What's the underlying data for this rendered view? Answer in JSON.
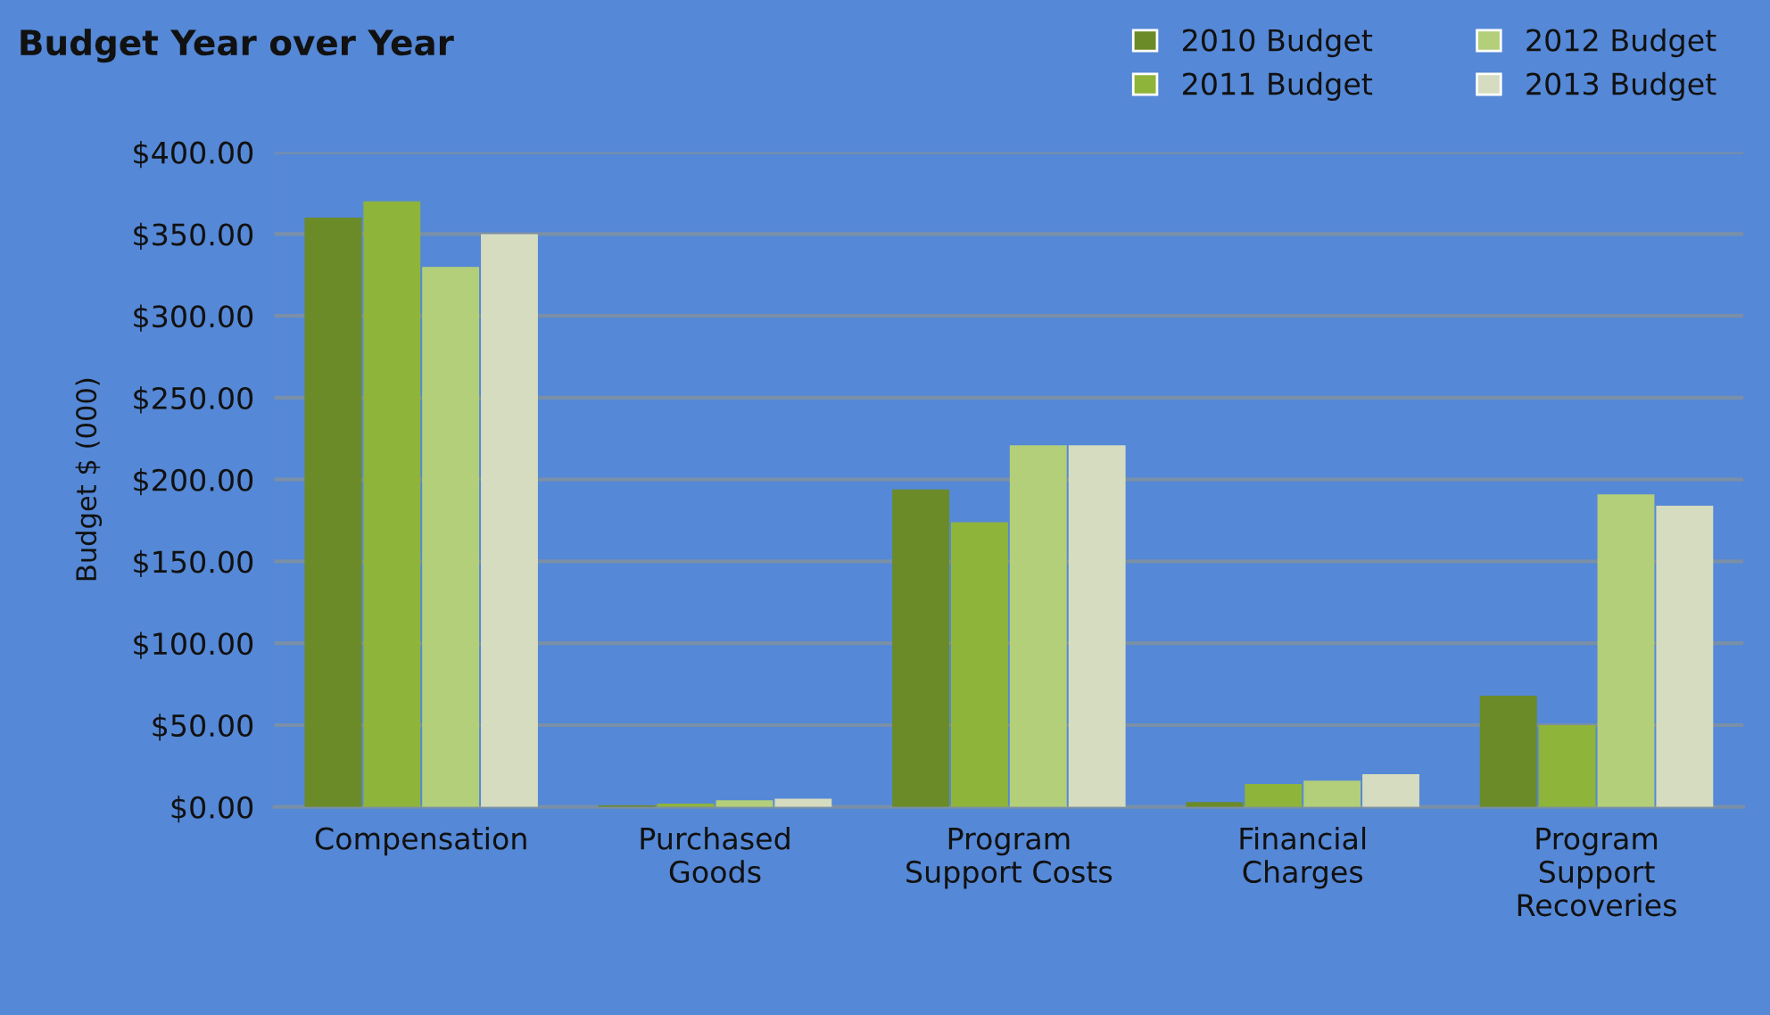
{
  "chart_data": {
    "type": "bar",
    "title": "Budget Year over Year",
    "ylabel": "Budget $ (000)",
    "categories": [
      "Compensation",
      "Purchased\nGoods",
      "Program\nSupport Costs",
      "Financial\nCharges",
      "Program\nSupport\nRecoveries"
    ],
    "series": [
      {
        "name": "2010 Budget",
        "color": "#6b8a28",
        "values": [
          360,
          1,
          194,
          3,
          68
        ]
      },
      {
        "name": "2011 Budget",
        "color": "#8fb43a",
        "values": [
          370,
          2,
          174,
          14,
          50
        ]
      },
      {
        "name": "2012 Budget",
        "color": "#b3cf7a",
        "values": [
          330,
          4,
          221,
          16,
          191
        ]
      },
      {
        "name": "2013 Budget",
        "color": "#d5dcbf",
        "values": [
          350,
          5,
          221,
          20,
          184
        ]
      }
    ],
    "ylim": [
      0,
      400
    ],
    "yticks": [
      {
        "value": 0,
        "label": "$0.00"
      },
      {
        "value": 50,
        "label": "$50.00"
      },
      {
        "value": 100,
        "label": "$100.00"
      },
      {
        "value": 150,
        "label": "$150.00"
      },
      {
        "value": 200,
        "label": "$200.00"
      },
      {
        "value": 250,
        "label": "$250.00"
      },
      {
        "value": 300,
        "label": "$300.00"
      },
      {
        "value": 350,
        "label": "$350.00"
      },
      {
        "value": 400,
        "label": "$400.00"
      }
    ],
    "grid": "y",
    "legend": "top right"
  }
}
